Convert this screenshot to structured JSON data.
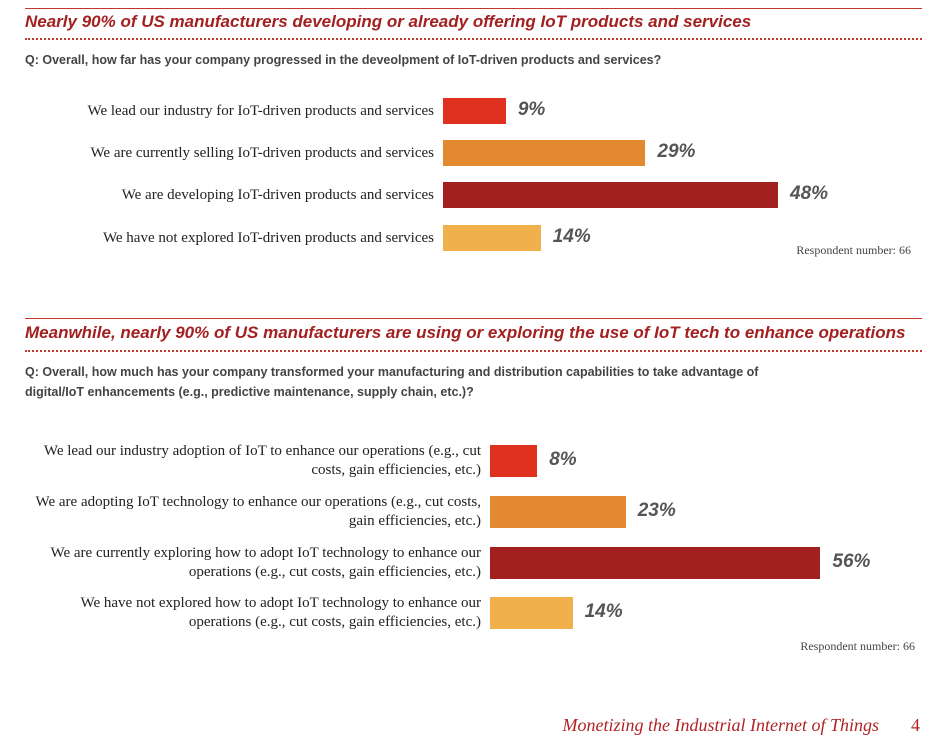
{
  "chart_data": [
    {
      "type": "bar",
      "orientation": "horizontal",
      "title": "Nearly 90% of US manufacturers developing or already offering IoT products and services",
      "question": "Q: Overall, how far has your company progressed in the deveolpment of IoT-driven products and services?",
      "categories": [
        "We lead our industry for IoT-driven products and services",
        "We are currently selling IoT-driven products and services",
        "We are developing IoT-driven products and services",
        "We have not explored IoT-driven products and services"
      ],
      "values": [
        9,
        29,
        48,
        14
      ],
      "value_labels": [
        "9%",
        "29%",
        "48%",
        "14%"
      ],
      "colors": [
        "#e0301e",
        "#e3892f",
        "#a32020",
        "#f0b04c"
      ],
      "note": "Respondent number: 66"
    },
    {
      "type": "bar",
      "orientation": "horizontal",
      "title": "Meanwhile, nearly 90% of US manufacturers are using or exploring the use of IoT tech to enhance operations",
      "question": "Q: Overall, how much has your company transformed your manufacturing and distribution capabilities to take advantage of digital/IoT enhancements (e.g., predictive maintenance, supply chain, etc.)?",
      "categories": [
        "We lead our industry adoption of IoT to enhance our operations (e.g., cut costs, gain efficiencies, etc.)",
        "We are adopting IoT technology to enhance our operations (e.g., cut costs, gain efficiencies, etc.)",
        "We are currently exploring how to adopt IoT technology to enhance our operations (e.g., cut costs, gain efficiencies, etc.)",
        "We have not explored how to adopt IoT technology to enhance our operations (e.g., cut costs, gain efficiencies, etc.)"
      ],
      "values": [
        8,
        23,
        56,
        14
      ],
      "value_labels": [
        "8%",
        "23%",
        "56%",
        "14%"
      ],
      "colors": [
        "#e0301e",
        "#e3892f",
        "#a32020",
        "#f0b04c"
      ],
      "note": "Respondent number: 66"
    }
  ],
  "footer": {
    "title": "Monetizing the Industrial Internet of Things",
    "page": "4"
  }
}
